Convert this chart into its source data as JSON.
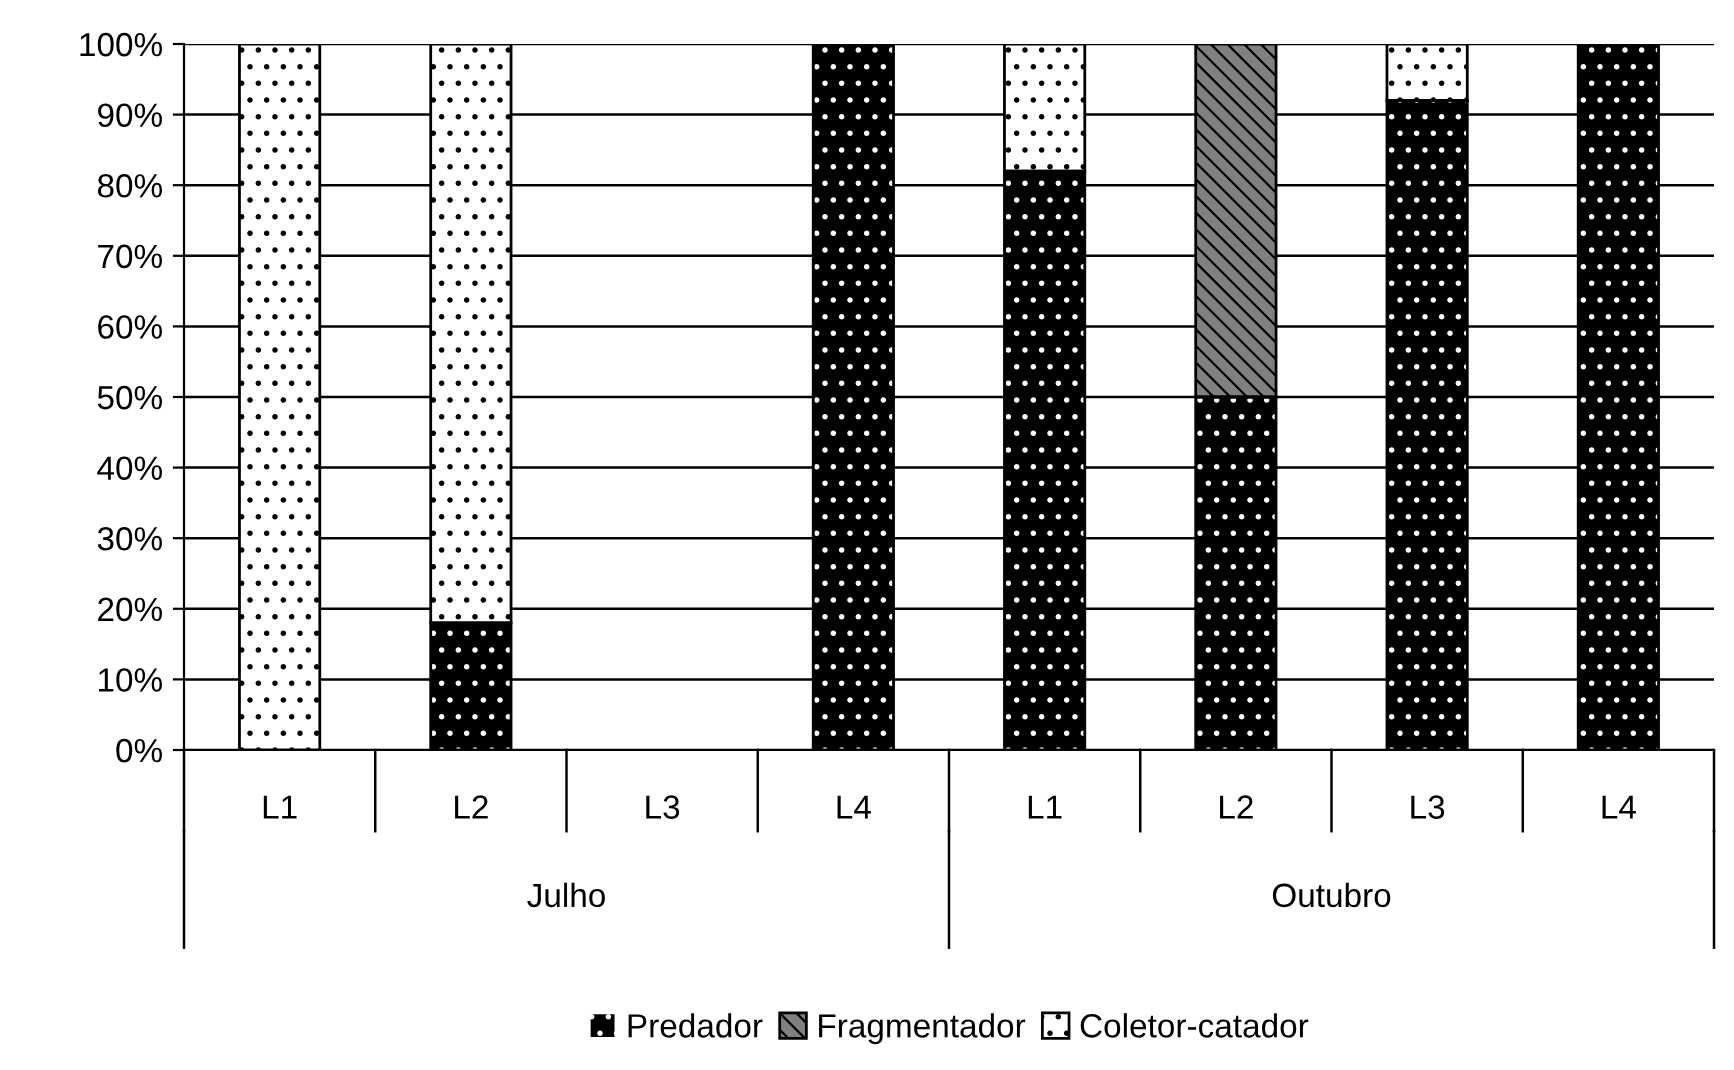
{
  "chart_data": {
    "type": "bar",
    "stacked": true,
    "categories": [
      "L1",
      "L2",
      "L3",
      "L4",
      "L1",
      "L2",
      "L3",
      "L4"
    ],
    "series": [
      {
        "name": "Predador",
        "color": "#000000",
        "values": [
          0,
          18,
          0,
          100,
          82,
          50,
          92,
          100
        ]
      },
      {
        "name": "Fragmentador",
        "color": "#808080",
        "values": [
          0,
          0,
          0,
          0,
          0,
          50,
          0,
          0
        ]
      },
      {
        "name": "Coletor-catador",
        "color": "#ffffff",
        "values": [
          100,
          82,
          0,
          0,
          18,
          0,
          8,
          0
        ]
      }
    ],
    "ylim": [
      0,
      100
    ],
    "yticks": [
      {
        "value": 0,
        "label": "0%"
      },
      {
        "value": 10,
        "label": "10%"
      },
      {
        "value": 20,
        "label": "20%"
      },
      {
        "value": 30,
        "label": "30%"
      },
      {
        "value": 40,
        "label": "40%"
      },
      {
        "value": 50,
        "label": "50%"
      },
      {
        "value": 60,
        "label": "60%"
      },
      {
        "value": 70,
        "label": "70%"
      },
      {
        "value": 80,
        "label": "80%"
      },
      {
        "value": 90,
        "label": "90%"
      },
      {
        "value": 100,
        "label": "100%"
      }
    ],
    "grid": "y",
    "legend": "bottom",
    "annotations": [
      "Julho",
      "Outubro"
    ]
  }
}
